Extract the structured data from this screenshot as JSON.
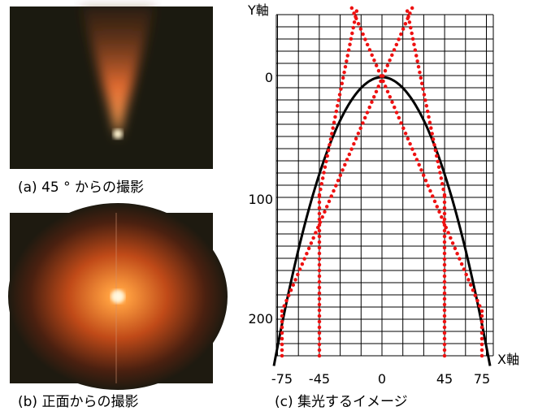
{
  "captions": {
    "a": "(a) 45 ° からの撮影",
    "b": "(b) 正面からの撮影",
    "c": "(c) 集光するイメージ"
  },
  "diagram": {
    "y_axis_label": "Y軸",
    "x_axis_label": "X軸",
    "x_ticks": [
      "-75",
      "-45",
      "0",
      "45",
      "75"
    ],
    "y_ticks": [
      "0",
      "100",
      "200"
    ]
  }
}
